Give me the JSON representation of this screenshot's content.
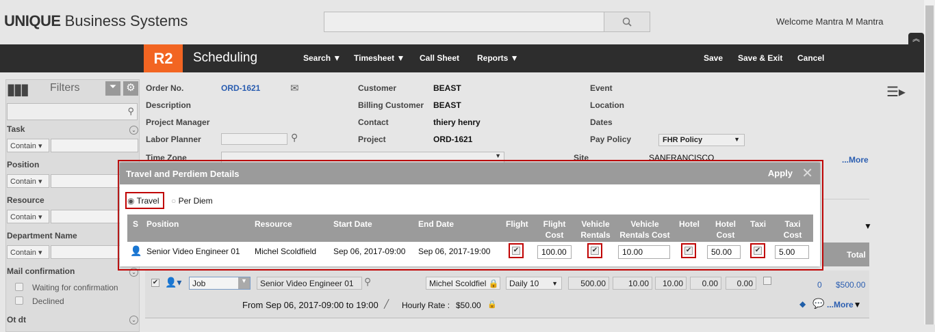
{
  "header": {
    "logo_bold": "UNIQUE",
    "logo_rest": " Business Systems",
    "welcome": "Welcome Mantra M Mantra",
    "search_placeholder": ""
  },
  "nav": {
    "badge": "R2",
    "title": "Scheduling",
    "items": [
      "Search",
      "Timesheet",
      "Call Sheet",
      "Reports"
    ],
    "actions": [
      "Save",
      "Save & Exit",
      "Cancel"
    ]
  },
  "filters": {
    "title": "Filters",
    "sections": [
      {
        "label": "Task",
        "op": "Contain"
      },
      {
        "label": "Position",
        "op": "Contain"
      },
      {
        "label": "Resource",
        "op": "Contain"
      },
      {
        "label": "Department Name",
        "op": "Contain"
      }
    ],
    "mail": {
      "label": "Mail confirmation",
      "options": [
        "Waiting for confirmation",
        "Declined"
      ]
    },
    "ot": "Ot dt"
  },
  "order": {
    "labels": {
      "order_no": "Order No.",
      "description": "Description",
      "project_manager": "Project Manager",
      "labor_planner": "Labor Planner",
      "time_zone": "Time Zone",
      "customer": "Customer",
      "billing_customer": "Billing Customer",
      "contact": "Contact",
      "project": "Project",
      "event": "Event",
      "location": "Location",
      "dates": "Dates",
      "pay_policy": "Pay Policy",
      "site": "Site"
    },
    "values": {
      "order_no": "ORD-1621",
      "customer": "BEAST",
      "billing_customer": "BEAST",
      "contact": "thiery henry",
      "project": "ORD-1621",
      "pay_policy": "FHR Policy",
      "site": "SANFRANCISCO"
    },
    "more": "...More"
  },
  "modal": {
    "title": "Travel and Perdiem Details",
    "apply": "Apply",
    "radios": [
      "Travel",
      "Per Diem"
    ],
    "selected": "Travel",
    "columns": [
      "S",
      "Position",
      "Resource",
      "Start Date",
      "End Date",
      "Flight",
      "Flight Cost",
      "Vehicle Rentals",
      "Vehicle Rentals Cost",
      "Hotel",
      "Hotel Cost",
      "Taxi",
      "Taxi Cost"
    ],
    "row": {
      "position": "Senior Video Engineer 01",
      "resource": "Michel Scoldfield",
      "start": "Sep 06, 2017-09:00",
      "end": "Sep 06, 2017-19:00",
      "flight": true,
      "flight_cost": "100.00",
      "vehicle": true,
      "vehicle_cost": "10.00",
      "hotel": true,
      "hotel_cost": "50.00",
      "taxi": true,
      "taxi_cost": "5.00"
    }
  },
  "grid": {
    "total_label": "Total",
    "row": {
      "type": "Job",
      "position": "Senior Video Engineer  01",
      "resource": "Michel Scoldfiel",
      "rate_type": "Daily 10",
      "v1": "500.00",
      "v2": "10.00",
      "v3": "10.00",
      "v4": "0.00",
      "v5": "0.00",
      "count": "0",
      "amount": "$500.00",
      "timeline": "From Sep 06, 2017-09:00 to 19:00",
      "hourly_label": "Hourly Rate :",
      "hourly": "$50.00",
      "more": "...More"
    }
  }
}
